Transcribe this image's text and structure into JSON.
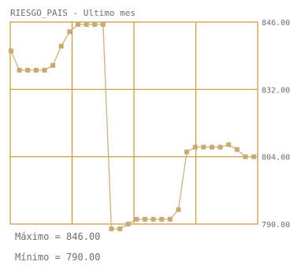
{
  "chart_data": {
    "type": "line",
    "title": "RIESGO_PAIS - Ultimo mes",
    "xlabel": "",
    "ylabel": "",
    "ylim": [
      790,
      846
    ],
    "y_ticks": [
      {
        "value": 846,
        "label": "846.00"
      },
      {
        "value": 832,
        "label": "832.00"
      },
      {
        "value": 804,
        "label": "804.00"
      },
      {
        "value": 790,
        "label": "790.00"
      }
    ],
    "grid": true,
    "x_gridlines": 3,
    "x": [
      1,
      2,
      3,
      4,
      5,
      6,
      7,
      8,
      9,
      10,
      11,
      12,
      13,
      14,
      15,
      16,
      17,
      18,
      19,
      20,
      21,
      22,
      23,
      24,
      25,
      26,
      27,
      28,
      29,
      30
    ],
    "values": [
      840,
      836,
      836,
      836,
      836,
      837,
      841,
      844,
      845.5,
      845.5,
      845.5,
      845.5,
      789,
      789,
      790,
      791,
      791,
      791,
      791,
      791,
      793,
      806,
      808,
      808,
      808,
      808,
      809,
      807,
      804,
      804
    ],
    "colors": {
      "line": "#cfb27a",
      "marker": "#c8aa74",
      "grid": "#c99536",
      "text": "#6e6e6e"
    }
  },
  "footer": {
    "max_label": "Máximo = 846.00",
    "min_label": "Mínimo = 790.00"
  }
}
